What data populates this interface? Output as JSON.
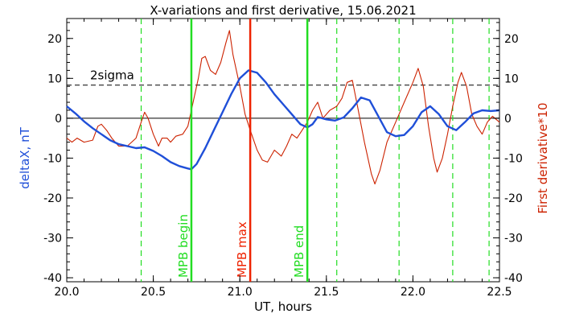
{
  "chart_data": {
    "type": "line",
    "title": "X-variations and first derivative, 15.06.2021",
    "xlabel": "UT, hours",
    "ylabel_left": "deltaX, nT",
    "ylabel_right": "First derivative*10",
    "xlim": [
      20.0,
      22.5
    ],
    "ylim": [
      -41,
      25
    ],
    "x_ticks": [
      20.0,
      20.5,
      21.0,
      21.5,
      22.0,
      22.5
    ],
    "x_tick_labels": [
      "20.0",
      "20.5",
      "21.0",
      "21.5",
      "22.0",
      "22.5"
    ],
    "y_ticks": [
      -40,
      -30,
      -20,
      -10,
      0,
      10,
      20
    ],
    "y_tick_labels": [
      "-40",
      "-30",
      "-20",
      "-10",
      "0",
      "10",
      "20"
    ],
    "sigma_level": 8.3,
    "sigma_label": "2sigma",
    "zero_line": 0,
    "colors": {
      "deltaX": "#1f4fd8",
      "derivative": "#cc2200",
      "mpb_marker": "#22dd22",
      "mpb_max": "#ee2200",
      "dashed_green": "#22dd22",
      "axes": "#000000"
    },
    "markers": [
      {
        "x": 20.72,
        "label": "MPB begin",
        "color": "#22dd22"
      },
      {
        "x": 21.06,
        "label": "MPB max",
        "color": "#ee2200"
      },
      {
        "x": 21.39,
        "label": "MPB end",
        "color": "#22dd22"
      }
    ],
    "dashed_verticals": [
      20.43,
      21.56,
      21.92,
      22.23,
      22.44
    ],
    "series": [
      {
        "key": "deltaX",
        "points": [
          [
            20.0,
            3
          ],
          [
            20.05,
            1.2
          ],
          [
            20.1,
            -0.8
          ],
          [
            20.15,
            -2.5
          ],
          [
            20.2,
            -4.0
          ],
          [
            20.25,
            -5.5
          ],
          [
            20.3,
            -6.5
          ],
          [
            20.35,
            -7.0
          ],
          [
            20.4,
            -7.5
          ],
          [
            20.45,
            -7.3
          ],
          [
            20.5,
            -8.2
          ],
          [
            20.55,
            -9.5
          ],
          [
            20.6,
            -11.0
          ],
          [
            20.65,
            -12.0
          ],
          [
            20.7,
            -12.6
          ],
          [
            20.72,
            -12.8
          ],
          [
            20.75,
            -11.5
          ],
          [
            20.8,
            -7.5
          ],
          [
            20.85,
            -3.0
          ],
          [
            20.9,
            1.5
          ],
          [
            20.95,
            6.0
          ],
          [
            21.0,
            10.0
          ],
          [
            21.05,
            12.0
          ],
          [
            21.1,
            11.4
          ],
          [
            21.15,
            9.0
          ],
          [
            21.2,
            6.0
          ],
          [
            21.25,
            3.5
          ],
          [
            21.3,
            1.0
          ],
          [
            21.35,
            -1.5
          ],
          [
            21.39,
            -2.3
          ],
          [
            21.42,
            -1.5
          ],
          [
            21.45,
            0.3
          ],
          [
            21.5,
            -0.3
          ],
          [
            21.55,
            -0.6
          ],
          [
            21.6,
            0.2
          ],
          [
            21.65,
            2.5
          ],
          [
            21.7,
            5.2
          ],
          [
            21.75,
            4.5
          ],
          [
            21.8,
            0.5
          ],
          [
            21.85,
            -3.5
          ],
          [
            21.9,
            -4.5
          ],
          [
            21.95,
            -4.2
          ],
          [
            22.0,
            -2.0
          ],
          [
            22.05,
            1.5
          ],
          [
            22.1,
            3.0
          ],
          [
            22.15,
            1.0
          ],
          [
            22.2,
            -2.0
          ],
          [
            22.25,
            -3.0
          ],
          [
            22.3,
            -1.0
          ],
          [
            22.35,
            1.2
          ],
          [
            22.4,
            2.0
          ],
          [
            22.45,
            1.8
          ],
          [
            22.5,
            2.0
          ]
        ]
      },
      {
        "key": "derivative",
        "points": [
          [
            20.0,
            -5
          ],
          [
            20.03,
            -6
          ],
          [
            20.06,
            -5
          ],
          [
            20.1,
            -6
          ],
          [
            20.15,
            -5.5
          ],
          [
            20.18,
            -2
          ],
          [
            20.2,
            -1.5
          ],
          [
            20.23,
            -3
          ],
          [
            20.26,
            -5
          ],
          [
            20.3,
            -7
          ],
          [
            20.35,
            -7
          ],
          [
            20.4,
            -5
          ],
          [
            20.43,
            -1
          ],
          [
            20.45,
            1.5
          ],
          [
            20.47,
            0
          ],
          [
            20.5,
            -4
          ],
          [
            20.53,
            -7
          ],
          [
            20.55,
            -5
          ],
          [
            20.58,
            -5
          ],
          [
            20.6,
            -6
          ],
          [
            20.63,
            -4.5
          ],
          [
            20.67,
            -4
          ],
          [
            20.7,
            -2
          ],
          [
            20.73,
            4
          ],
          [
            20.76,
            10
          ],
          [
            20.78,
            15
          ],
          [
            20.8,
            15.5
          ],
          [
            20.83,
            12
          ],
          [
            20.86,
            11
          ],
          [
            20.89,
            14
          ],
          [
            20.92,
            19
          ],
          [
            20.94,
            22
          ],
          [
            20.96,
            16
          ],
          [
            21.0,
            8
          ],
          [
            21.03,
            1
          ],
          [
            21.06,
            -3
          ],
          [
            21.1,
            -8
          ],
          [
            21.13,
            -10.5
          ],
          [
            21.16,
            -11
          ],
          [
            21.2,
            -8
          ],
          [
            21.24,
            -9.5
          ],
          [
            21.27,
            -7
          ],
          [
            21.3,
            -4
          ],
          [
            21.33,
            -5
          ],
          [
            21.36,
            -3
          ],
          [
            21.39,
            -1
          ],
          [
            21.42,
            2
          ],
          [
            21.45,
            4
          ],
          [
            21.48,
            0
          ],
          [
            21.52,
            2
          ],
          [
            21.56,
            3
          ],
          [
            21.59,
            5
          ],
          [
            21.62,
            9
          ],
          [
            21.65,
            9.5
          ],
          [
            21.68,
            3
          ],
          [
            21.72,
            -6
          ],
          [
            21.76,
            -14
          ],
          [
            21.78,
            -16.5
          ],
          [
            21.81,
            -13
          ],
          [
            21.85,
            -6
          ],
          [
            21.9,
            -1
          ],
          [
            21.95,
            4
          ],
          [
            22.0,
            9
          ],
          [
            22.03,
            12.5
          ],
          [
            22.06,
            8
          ],
          [
            22.09,
            -2
          ],
          [
            22.12,
            -10
          ],
          [
            22.14,
            -13.5
          ],
          [
            22.17,
            -10
          ],
          [
            22.2,
            -4
          ],
          [
            22.23,
            3
          ],
          [
            22.26,
            9
          ],
          [
            22.28,
            11.5
          ],
          [
            22.31,
            8
          ],
          [
            22.34,
            1
          ],
          [
            22.37,
            -2
          ],
          [
            22.4,
            -4
          ],
          [
            22.43,
            -1
          ],
          [
            22.46,
            0.5
          ],
          [
            22.5,
            -1
          ]
        ]
      }
    ]
  }
}
